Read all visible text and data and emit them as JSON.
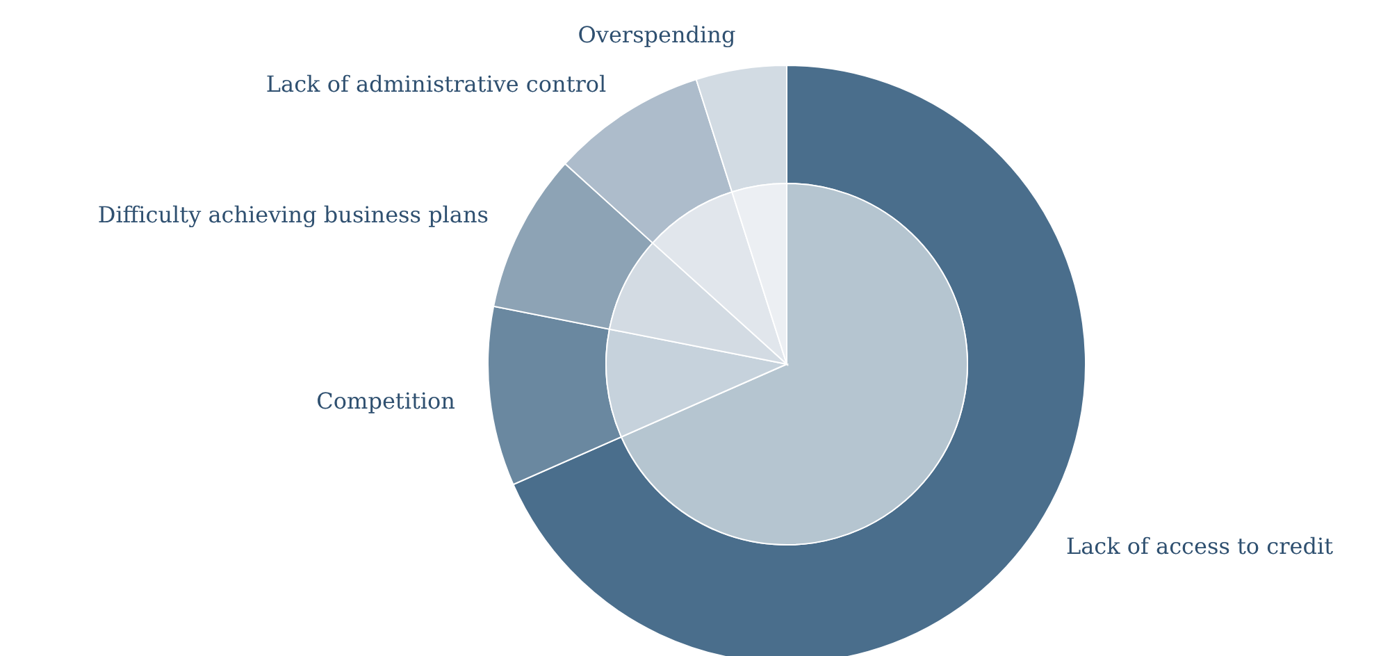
{
  "chart_data": {
    "type": "donut",
    "categories": [
      "Lack of access to credit",
      "Competition",
      "Difficulty achieving business plans",
      "Lack of administrative control",
      "Overspending"
    ],
    "series": [
      {
        "values": [
          68.4,
          9.7,
          8.6,
          8.4,
          4.9
        ],
        "colors": [
          "#4a6e8c",
          "#6a88a0",
          "#8da3b5",
          "#adbccb",
          "#d2dbe3"
        ]
      },
      {
        "type": "pie",
        "values": [
          68.4,
          9.7,
          8.6,
          8.4,
          4.9
        ],
        "colors": [
          "#b5c5d0",
          "#c6d2dc",
          "#d3dbe3",
          "#e1e6ec",
          "#eceff3"
        ]
      }
    ]
  }
}
